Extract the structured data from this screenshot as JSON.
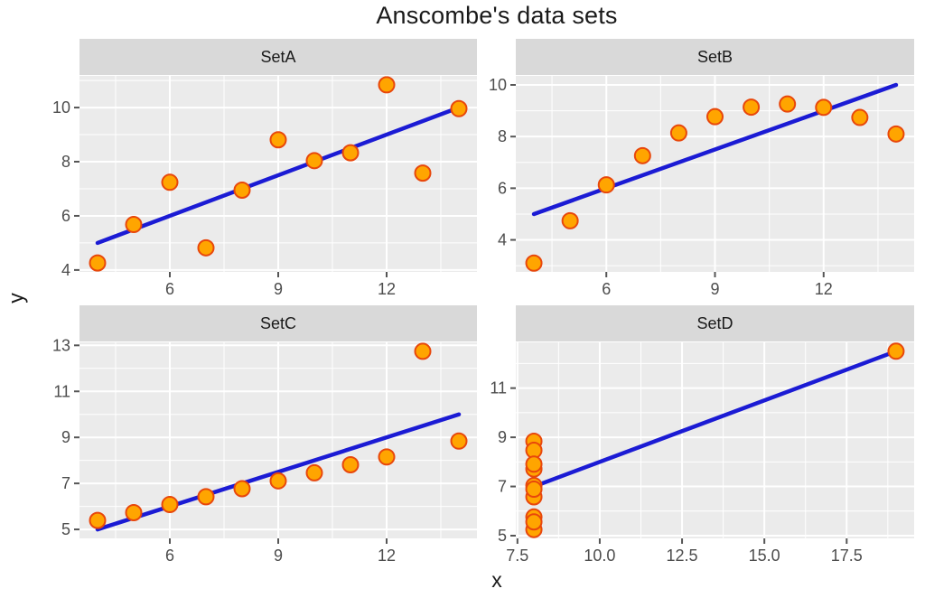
{
  "title": "Anscombe's data sets",
  "x_axis_label": "x",
  "y_axis_label": "y",
  "colors": {
    "background": "#FFFFFF",
    "panel_bg": "#EBEBEB",
    "strip_bg": "#D9D9D9",
    "grid": "#FFFFFF",
    "axis_text": "#4D4D4D",
    "tick_mark": "#555555",
    "strip_text": "#1A1A1A",
    "point_fill": "#FFA500",
    "point_stroke": "#E8470B",
    "line": "#1B1BD4"
  },
  "chart_data": {
    "type": "scatter",
    "title": "Anscombe's data sets",
    "xlabel": "x",
    "ylabel": "y",
    "legend": "none",
    "grid": "on",
    "facets": [
      {
        "label": "SetA",
        "points": [
          [
            10,
            8.04
          ],
          [
            8,
            6.95
          ],
          [
            13,
            7.58
          ],
          [
            9,
            8.81
          ],
          [
            11,
            8.33
          ],
          [
            14,
            9.96
          ],
          [
            6,
            7.24
          ],
          [
            4,
            4.26
          ],
          [
            12,
            10.84
          ],
          [
            7,
            4.82
          ],
          [
            5,
            5.68
          ]
        ],
        "regression": {
          "x1": 4,
          "y1": 5.0,
          "x2": 14,
          "y2": 10.0
        },
        "xlim": [
          3.5,
          14.5
        ],
        "ylim": [
          3.93,
          11.17
        ],
        "xticks": [
          6,
          9,
          12
        ],
        "xtick_labels": [
          "6",
          "9",
          "12"
        ],
        "yticks": [
          4,
          6,
          8,
          10
        ],
        "ytick_labels": [
          "4",
          "6",
          "8",
          "10"
        ]
      },
      {
        "label": "SetB",
        "points": [
          [
            10,
            9.14
          ],
          [
            8,
            8.14
          ],
          [
            13,
            8.74
          ],
          [
            9,
            8.77
          ],
          [
            11,
            9.26
          ],
          [
            14,
            8.1
          ],
          [
            6,
            6.13
          ],
          [
            4,
            3.1
          ],
          [
            12,
            9.13
          ],
          [
            7,
            7.26
          ],
          [
            5,
            4.74
          ]
        ],
        "regression": {
          "x1": 4,
          "y1": 5.0,
          "x2": 14,
          "y2": 10.0
        },
        "xlim": [
          3.5,
          14.5
        ],
        "ylim": [
          2.76,
          10.35
        ],
        "xticks": [
          6,
          9,
          12
        ],
        "xtick_labels": [
          "6",
          "9",
          "12"
        ],
        "yticks": [
          4,
          6,
          8,
          10
        ],
        "ytick_labels": [
          "4",
          "6",
          "8",
          "10"
        ]
      },
      {
        "label": "SetC",
        "points": [
          [
            10,
            7.46
          ],
          [
            8,
            6.77
          ],
          [
            13,
            12.74
          ],
          [
            9,
            7.11
          ],
          [
            11,
            7.81
          ],
          [
            14,
            8.84
          ],
          [
            6,
            6.08
          ],
          [
            4,
            5.39
          ],
          [
            12,
            8.15
          ],
          [
            7,
            6.42
          ],
          [
            5,
            5.73
          ]
        ],
        "regression": {
          "x1": 4,
          "y1": 5.0,
          "x2": 14,
          "y2": 10.0
        },
        "xlim": [
          3.5,
          14.5
        ],
        "ylim": [
          4.61,
          13.13
        ],
        "xticks": [
          6,
          9,
          12
        ],
        "xtick_labels": [
          "6",
          "9",
          "12"
        ],
        "yticks": [
          5,
          7,
          9,
          11,
          13
        ],
        "ytick_labels": [
          "5",
          "7",
          "9",
          "11",
          "13"
        ]
      },
      {
        "label": "SetD",
        "points": [
          [
            8,
            6.58
          ],
          [
            8,
            5.76
          ],
          [
            8,
            7.71
          ],
          [
            8,
            8.84
          ],
          [
            8,
            8.47
          ],
          [
            8,
            7.04
          ],
          [
            8,
            5.25
          ],
          [
            19,
            12.5
          ],
          [
            8,
            5.56
          ],
          [
            8,
            7.91
          ],
          [
            8,
            6.89
          ]
        ],
        "regression": {
          "x1": 8,
          "y1": 7.0,
          "x2": 19,
          "y2": 12.5
        },
        "xlim": [
          7.45,
          19.55
        ],
        "ylim": [
          4.89,
          12.86
        ],
        "xticks": [
          7.5,
          10.0,
          12.5,
          15.0,
          17.5
        ],
        "xtick_labels": [
          "7.5",
          "10.0",
          "12.5",
          "15.0",
          "17.5"
        ],
        "yticks": [
          5,
          7,
          9,
          11
        ],
        "ytick_labels": [
          "5",
          "7",
          "9",
          "11"
        ]
      }
    ]
  }
}
